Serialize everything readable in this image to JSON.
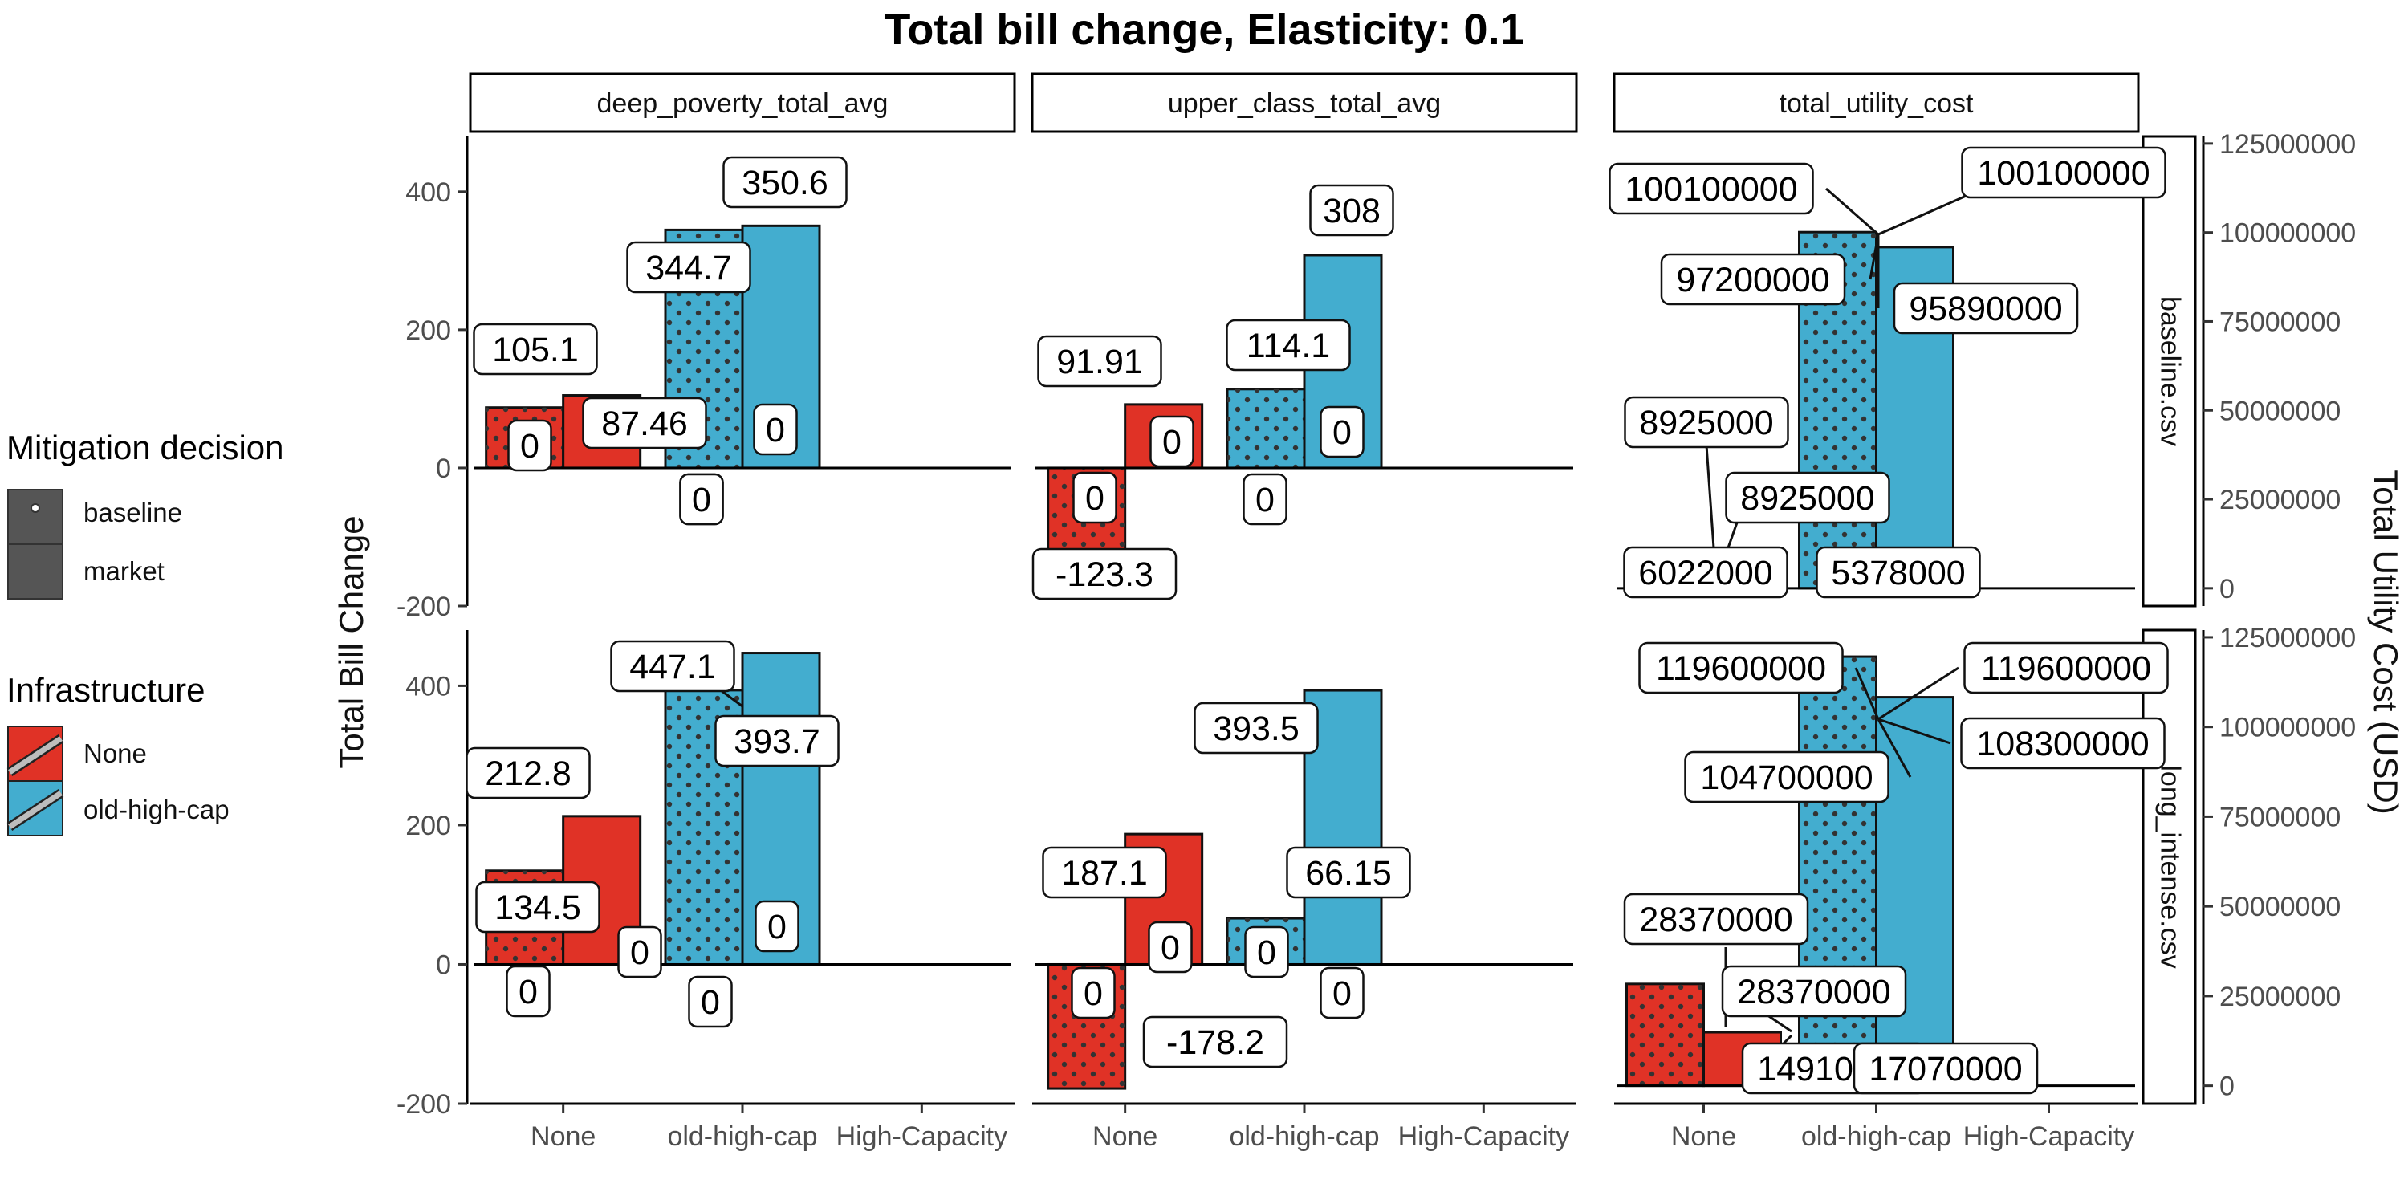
{
  "chart_data": {
    "type": "bar",
    "title": "Total bill change, Elasticity: 0.1",
    "categories": [
      "None",
      "old-high-cap",
      "High-Capacity"
    ],
    "facet_columns": [
      "deep_poverty_total_avg",
      "upper_class_total_avg",
      "total_utility_cost"
    ],
    "facet_rows": [
      "baseline.csv",
      "long_intense.csv"
    ],
    "ylabel_left": "Total Bill Change",
    "ylabel_right": "Total Utility Cost (USD)",
    "left_axis": {
      "ylim": [
        -200,
        480
      ],
      "ticks": [
        -200,
        0,
        200,
        400
      ]
    },
    "right_axis": {
      "ylim": [
        -5000000,
        127000000
      ],
      "ticks": [
        0,
        25000000,
        50000000,
        75000000,
        100000000,
        125000000
      ]
    },
    "legend": {
      "mitigation_title": "Mitigation decision",
      "mitigation_items": [
        "baseline",
        "market"
      ],
      "infrastructure_title": "Infrastructure",
      "infrastructure_items": [
        "None",
        "old-high-cap"
      ]
    },
    "colors": {
      "None": "#e03226",
      "old-high-cap": "#43adcf"
    },
    "panels": [
      {
        "row": "baseline.csv",
        "col": "deep_poverty_total_avg",
        "bars": [
          {
            "category": "None",
            "mitigation": "baseline",
            "value": 87.46
          },
          {
            "category": "None",
            "mitigation": "market",
            "value": 105.1
          },
          {
            "category": "old-high-cap",
            "mitigation": "baseline",
            "value": 344.7
          },
          {
            "category": "old-high-cap",
            "mitigation": "market",
            "value": 350.6
          }
        ],
        "labels": [
          "105.1",
          "0",
          "87.46",
          "0",
          "344.7",
          "350.6",
          "0",
          "0"
        ]
      },
      {
        "row": "baseline.csv",
        "col": "upper_class_total_avg",
        "bars": [
          {
            "category": "None",
            "mitigation": "baseline",
            "value": -123.3
          },
          {
            "category": "None",
            "mitigation": "market",
            "value": 91.91
          },
          {
            "category": "old-high-cap",
            "mitigation": "baseline",
            "value": 114.1
          },
          {
            "category": "old-high-cap",
            "mitigation": "market",
            "value": 308
          }
        ],
        "labels": [
          "91.91",
          "0",
          "0",
          "-123.3",
          "114.1",
          "308",
          "0",
          "0"
        ]
      },
      {
        "row": "baseline.csv",
        "col": "total_utility_cost",
        "bars": [
          {
            "category": "None",
            "mitigation": "baseline",
            "value": 8925000
          },
          {
            "category": "None",
            "mitigation": "market",
            "value": 6022000
          },
          {
            "category": "old-high-cap",
            "mitigation": "baseline",
            "value": 100100000
          },
          {
            "category": "old-high-cap",
            "mitigation": "market",
            "value": 95890000
          }
        ],
        "labels": [
          "100100000",
          "100100000",
          "97200000",
          "95890000",
          "8925000",
          "8925000",
          "6022000",
          "5378000"
        ]
      },
      {
        "row": "long_intense.csv",
        "col": "deep_poverty_total_avg",
        "bars": [
          {
            "category": "None",
            "mitigation": "baseline",
            "value": 134.5
          },
          {
            "category": "None",
            "mitigation": "market",
            "value": 212.8
          },
          {
            "category": "old-high-cap",
            "mitigation": "baseline",
            "value": 393.7
          },
          {
            "category": "old-high-cap",
            "mitigation": "market",
            "value": 447.1
          }
        ],
        "labels": [
          "447.1",
          "393.7",
          "212.8",
          "134.5",
          "0",
          "0",
          "0",
          "0"
        ]
      },
      {
        "row": "long_intense.csv",
        "col": "upper_class_total_avg",
        "bars": [
          {
            "category": "None",
            "mitigation": "baseline",
            "value": -178.2
          },
          {
            "category": "None",
            "mitigation": "market",
            "value": 187.1
          },
          {
            "category": "old-high-cap",
            "mitigation": "baseline",
            "value": 66.15
          },
          {
            "category": "old-high-cap",
            "mitigation": "market",
            "value": 393.5
          }
        ],
        "labels": [
          "393.5",
          "187.1",
          "66.15",
          "0",
          "0",
          "0",
          "-178.2",
          "0"
        ]
      },
      {
        "row": "long_intense.csv",
        "col": "total_utility_cost",
        "bars": [
          {
            "category": "None",
            "mitigation": "baseline",
            "value": 28370000
          },
          {
            "category": "None",
            "mitigation": "market",
            "value": 14910000
          },
          {
            "category": "old-high-cap",
            "mitigation": "baseline",
            "value": 119600000
          },
          {
            "category": "old-high-cap",
            "mitigation": "market",
            "value": 108300000
          }
        ],
        "labels": [
          "119600000",
          "119600000",
          "104700000",
          "108300000",
          "28370000",
          "28370000",
          "14910000",
          "17070000"
        ]
      }
    ]
  }
}
